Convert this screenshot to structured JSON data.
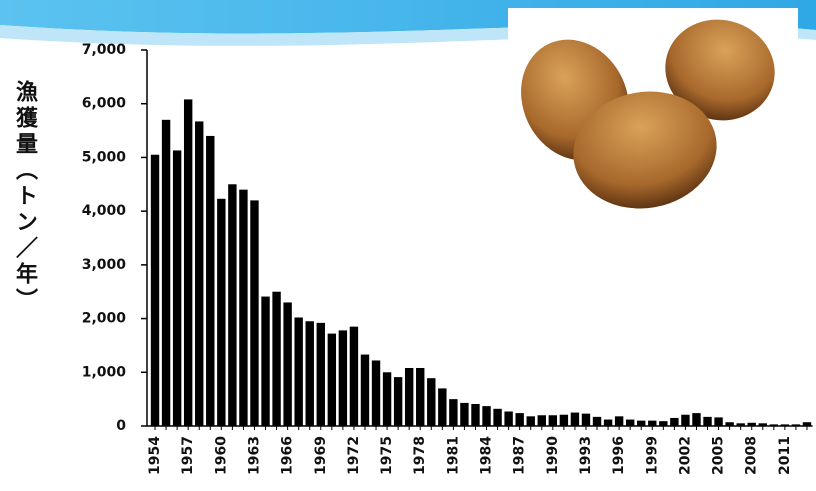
{
  "chart_data": {
    "type": "bar",
    "y_label": "漁獲量（トン／年）",
    "categories": [
      "1954",
      null,
      null,
      "1957",
      null,
      null,
      "1960",
      null,
      null,
      "1963",
      null,
      null,
      "1966",
      null,
      null,
      "1969",
      null,
      null,
      "1972",
      null,
      null,
      "1975",
      null,
      null,
      "1978",
      null,
      null,
      "1981",
      null,
      null,
      "1984",
      null,
      null,
      "1987",
      null,
      null,
      "1990",
      null,
      null,
      "1993",
      null,
      null,
      "1996",
      null,
      null,
      "1999",
      null,
      null,
      "2002",
      null,
      null,
      "2005",
      null,
      null,
      "2008",
      null,
      null,
      "2011",
      null,
      null
    ],
    "values": [
      5050,
      5700,
      5130,
      6080,
      5670,
      5400,
      4230,
      4500,
      4400,
      4200,
      2410,
      2500,
      2300,
      2020,
      1950,
      1920,
      1720,
      1780,
      1850,
      1330,
      1220,
      1000,
      910,
      1080,
      1080,
      890,
      700,
      500,
      430,
      410,
      370,
      320,
      270,
      240,
      180,
      200,
      200,
      210,
      250,
      230,
      170,
      120,
      180,
      120,
      100,
      100,
      90,
      150,
      210,
      240,
      170,
      160,
      70,
      50,
      60,
      50,
      30,
      30,
      30,
      70
    ],
    "color": "#000000",
    "ylim": [
      0,
      7000
    ],
    "yticks": [
      0,
      {
        "value": 1000,
        "label": "1,000"
      },
      {
        "value": 2000,
        "label": "2,000"
      },
      {
        "value": 3000,
        "label": "3,000"
      },
      {
        "value": 4000,
        "label": "4,000"
      },
      {
        "value": 5000,
        "label": "5,000"
      },
      {
        "value": 6000,
        "label": "6,000"
      },
      {
        "value": 7000,
        "label": "7,000"
      }
    ],
    "grid": false
  }
}
